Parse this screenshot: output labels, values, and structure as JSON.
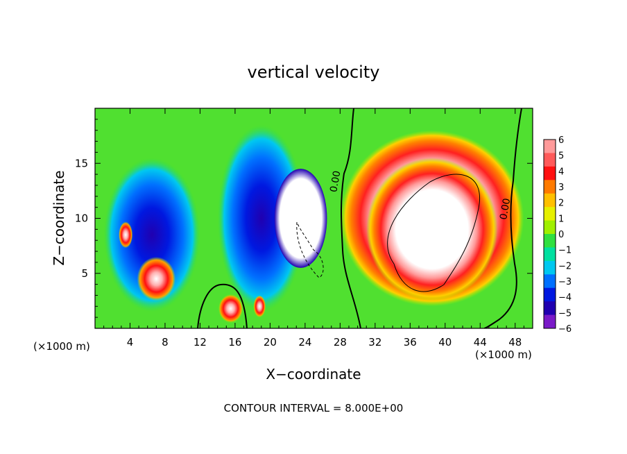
{
  "chart_data": {
    "type": "heatmap",
    "title": "vertical velocity",
    "xlabel": "X−coordinate",
    "ylabel": "Z−coordinate",
    "x_unit_left": "(×1000 m)",
    "x_unit_right": "(×1000 m)",
    "xlim": [
      0,
      50
    ],
    "ylim": [
      0,
      20
    ],
    "x_ticks": [
      4,
      8,
      12,
      16,
      20,
      24,
      28,
      32,
      36,
      40,
      44,
      48
    ],
    "y_ticks": [
      5,
      10,
      15
    ],
    "footer": "CONTOUR INTERVAL = 8.000E+00",
    "contour_labels": [
      {
        "text": "0.00",
        "x": 27.8,
        "z": 13.3
      },
      {
        "text": "0.00",
        "x": 47.2,
        "z": 10.8
      }
    ],
    "colorbar": {
      "levels": [
        6,
        5,
        4,
        3,
        2,
        1,
        0,
        -1,
        -2,
        -3,
        -4,
        -5,
        -6
      ],
      "colors": [
        "#ff9a9a",
        "#ff5a5a",
        "#ff1010",
        "#ff7a00",
        "#ffc000",
        "#e6f000",
        "#a0f000",
        "#30e040",
        "#00e0a0",
        "#00c8f0",
        "#0070ff",
        "#0018e0",
        "#2000b0",
        "#7a1ac8"
      ]
    },
    "features": [
      {
        "name": "updraft-core",
        "x": 38.5,
        "z": 9.0,
        "rx": 7.5,
        "rz": 6.5,
        "value": 6.5
      },
      {
        "name": "updraft-ring",
        "x": 38.5,
        "z": 10.0,
        "rx": 10.5,
        "rz": 8.0,
        "value": 4.0
      },
      {
        "name": "updraft-left-plume",
        "x": 23.5,
        "z": 10.0,
        "rx": 3.0,
        "rz": 4.5,
        "value": 6.0
      },
      {
        "name": "updraft-small-1",
        "x": 15.5,
        "z": 1.8,
        "rx": 1.4,
        "rz": 1.3,
        "value": 5.0
      },
      {
        "name": "updraft-small-2",
        "x": 7.0,
        "z": 4.5,
        "rx": 2.2,
        "rz": 2.0,
        "value": 6.0
      },
      {
        "name": "updraft-small-3",
        "x": 3.5,
        "z": 8.5,
        "rx": 0.8,
        "rz": 1.2,
        "value": 6.0
      },
      {
        "name": "updraft-small-4",
        "x": 18.8,
        "z": 2.0,
        "rx": 0.7,
        "rz": 1.0,
        "value": 6.0
      },
      {
        "name": "downdraft-left",
        "x": 6.5,
        "z": 8.5,
        "rx": 5.5,
        "rz": 7.0,
        "value": -5.0
      },
      {
        "name": "downdraft-mid",
        "x": 19.0,
        "z": 10.0,
        "rx": 5.0,
        "rz": 8.5,
        "value": -5.5
      }
    ]
  }
}
